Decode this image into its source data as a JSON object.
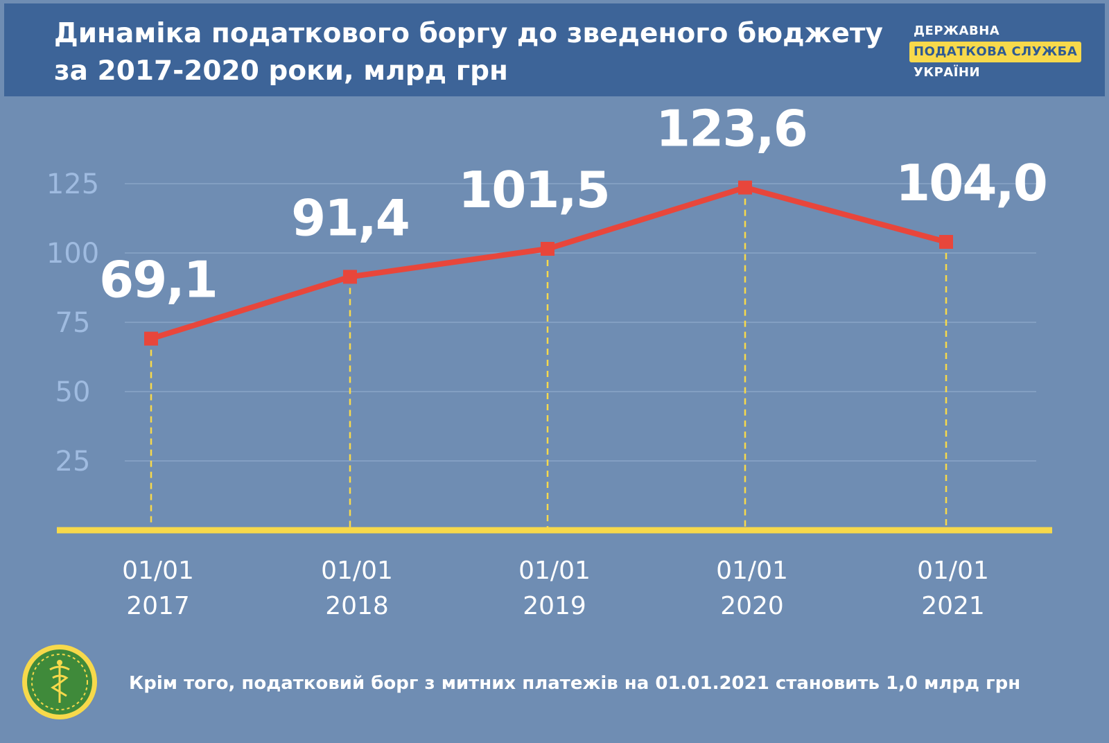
{
  "header": {
    "title_line1": "Динаміка податкового боргу до зведеного бюджету",
    "title_line2": "за 2017-2020 роки, млрд грн",
    "brand_line1": "ДЕРЖАВНА",
    "brand_line2": "ПОДАТКОВА СЛУЖБА",
    "brand_line3": "УКРАЇНИ"
  },
  "footnote": "Крім того, податковий борг з митних платежів на 01.01.2021 становить 1,0 млрд грн",
  "colors": {
    "background": "#6f8db3",
    "header": "#3d6498",
    "line": "#e8463b",
    "axis": "#f7d94b",
    "grid": "#8aa5c8",
    "tick_label": "#9fbbe0"
  },
  "chart_data": {
    "type": "line",
    "categories": [
      [
        "01/01",
        "2017"
      ],
      [
        "01/01",
        "2018"
      ],
      [
        "01/01",
        "2019"
      ],
      [
        "01/01",
        "2020"
      ],
      [
        "01/01",
        "2021"
      ]
    ],
    "series": [
      {
        "values": [
          69.1,
          91.4,
          101.5,
          123.6,
          104.0
        ],
        "labels": [
          "69,1",
          "91,4",
          "101,5",
          "123,6",
          "104,0"
        ]
      }
    ],
    "yticks": [
      25,
      50,
      75,
      100,
      125
    ],
    "ylim": [
      0,
      125
    ],
    "grid": true,
    "legend": "none"
  }
}
